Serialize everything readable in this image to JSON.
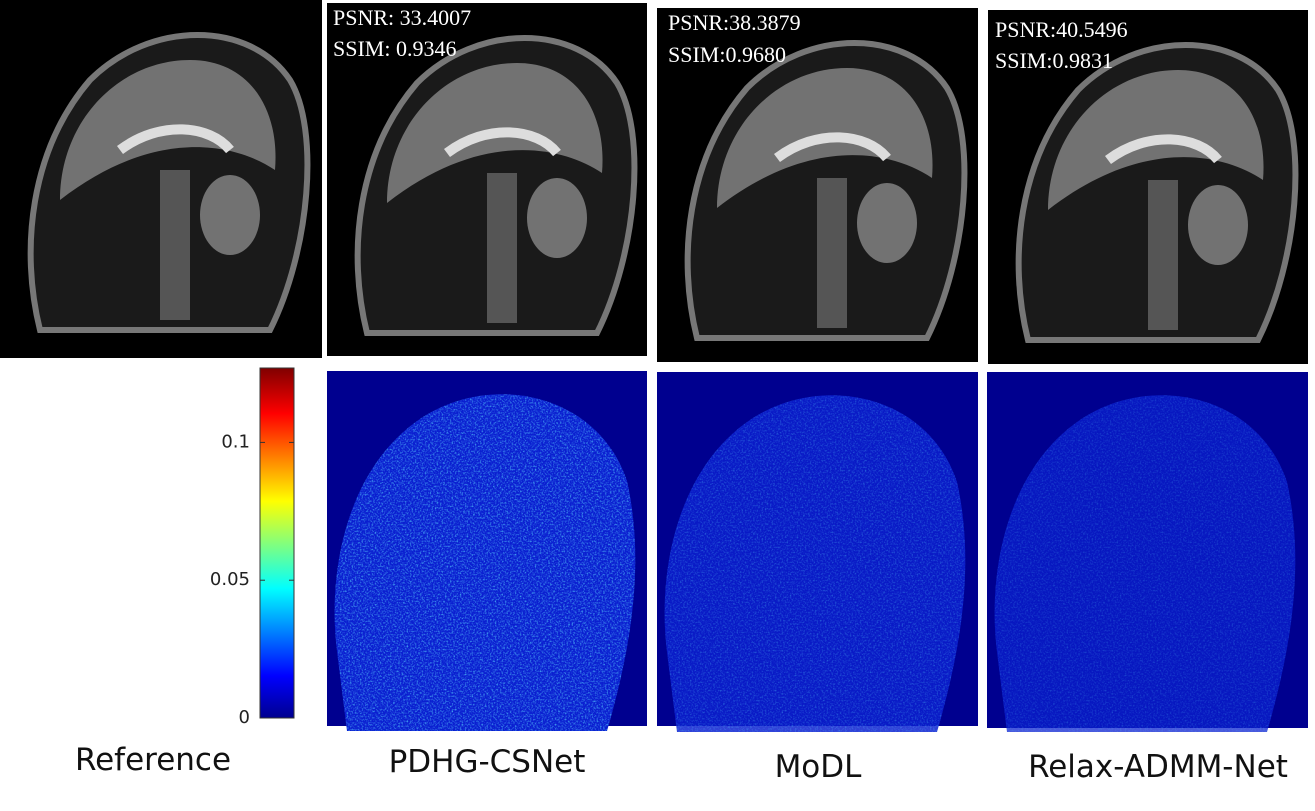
{
  "panels": [
    {
      "label": "Reference"
    },
    {
      "label": "PDHG-CSNet",
      "psnr": "PSNR: 33.4007",
      "ssim": "SSIM: 0.9346"
    },
    {
      "label": "MoDL",
      "psnr": "PSNR:38.3879",
      "ssim": "SSIM:0.9680"
    },
    {
      "label": "Relax-ADMM-Net",
      "psnr": "PSNR:40.5496",
      "ssim": "SSIM:0.9831"
    }
  ],
  "colorbar": {
    "lim": [
      0,
      0.127
    ],
    "ticks": [
      0,
      0.05,
      0.1
    ]
  }
}
